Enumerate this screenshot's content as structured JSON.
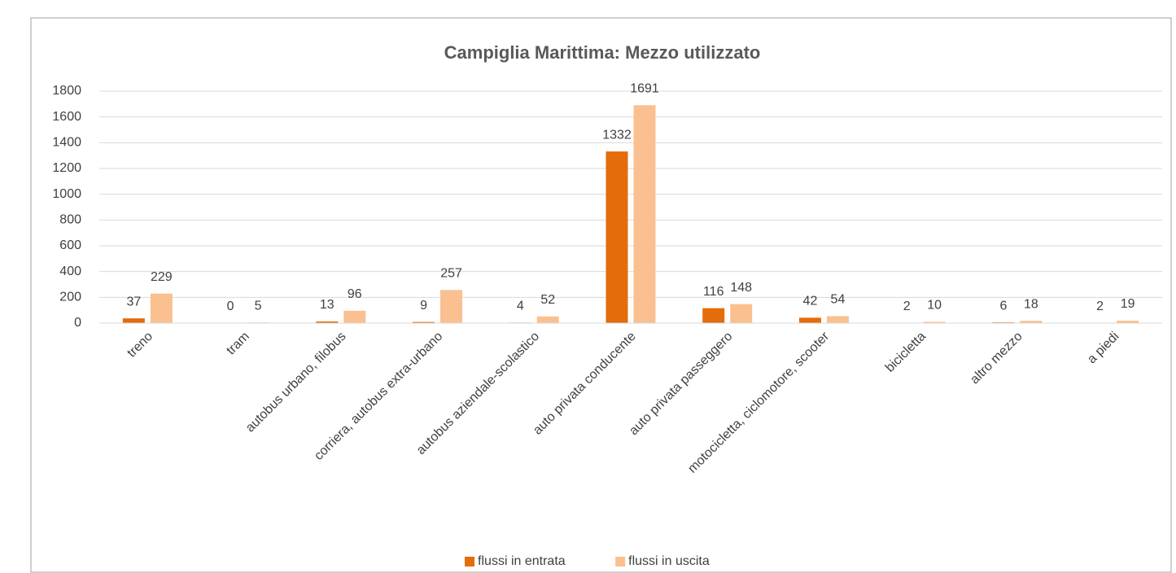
{
  "chart_data": {
    "type": "bar",
    "title": "Campiglia Marittima: Mezzo utilizzato",
    "categories": [
      "treno",
      "tram",
      "autobus urbano, filobus",
      "corriera, autobus extra-urbano",
      "autobus aziendale-scolastico",
      "auto privata conducente",
      "auto privata passeggero",
      "motocicletta, ciclomotore, scooter",
      "bicicletta",
      "altro mezzo",
      "a piedi"
    ],
    "series": [
      {
        "name": "flussi in entrata",
        "color": "#e46c0a",
        "values": [
          37,
          0,
          13,
          9,
          4,
          1332,
          116,
          42,
          2,
          6,
          2
        ]
      },
      {
        "name": "flussi in uscita",
        "color": "#fac090",
        "values": [
          229,
          5,
          96,
          257,
          52,
          1691,
          148,
          54,
          10,
          18,
          19
        ]
      }
    ],
    "ylim": [
      0,
      1800
    ],
    "yticks": [
      0,
      200,
      400,
      600,
      800,
      1000,
      1200,
      1400,
      1600,
      1800
    ],
    "grid": true,
    "legend": "bottom"
  }
}
